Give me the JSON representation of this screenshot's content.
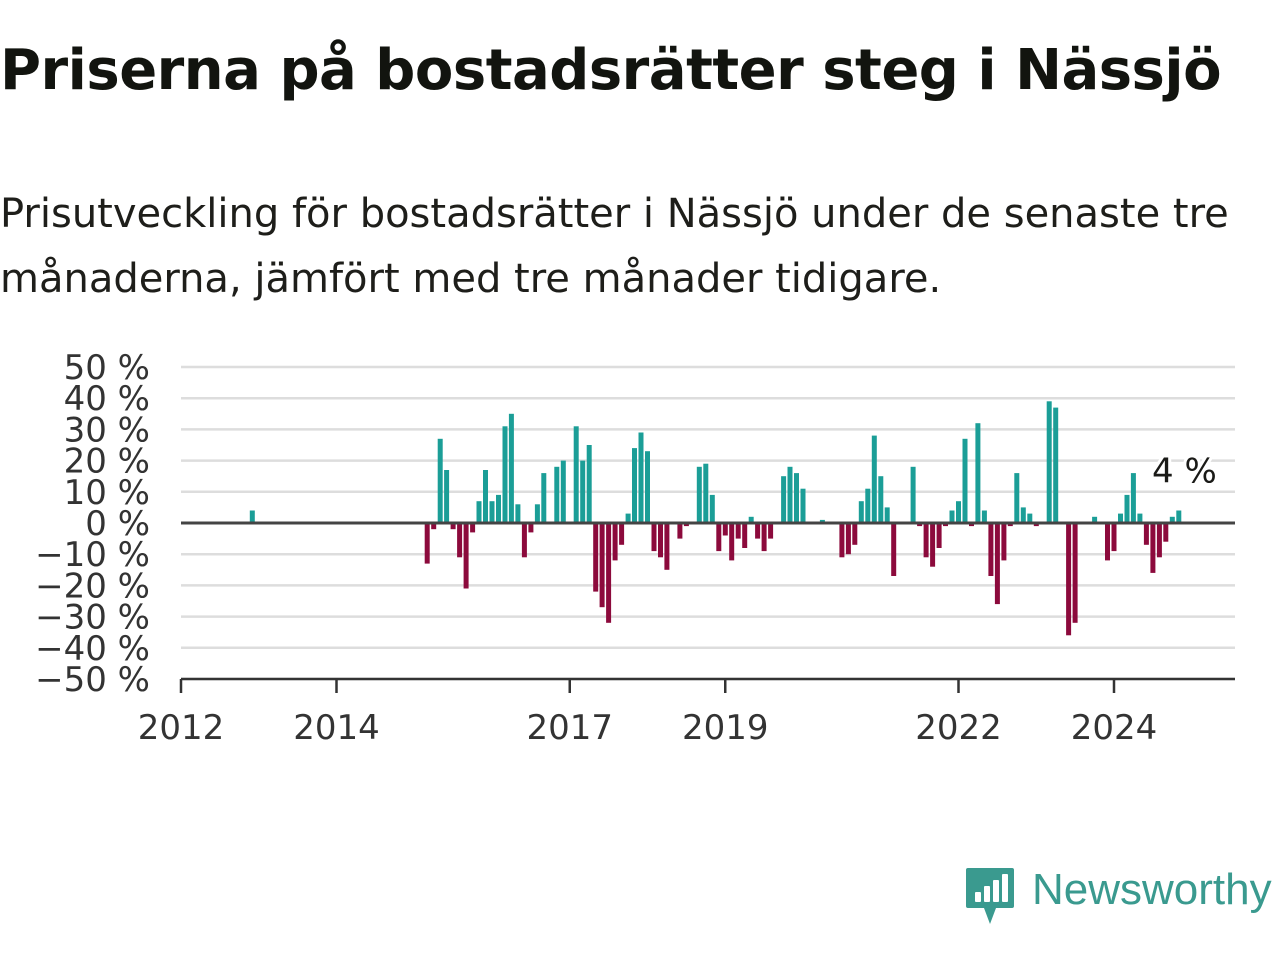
{
  "title": "Priserna på bostadsrätter steg i Nässjö",
  "subtitle": "Prisutveckling för bostadsrätter i Nässjö under de senaste tre månaderna, jämfört med tre månader tidigare.",
  "brand": {
    "name": "Newsworthy",
    "color": "#3a9a8f",
    "icon": "newsworthy-logo-icon"
  },
  "colors": {
    "positive": "#1b9e97",
    "negative": "#8c0a3c",
    "grid": "#dddddd",
    "zero_line": "#444444"
  },
  "chart_data": {
    "type": "bar",
    "x_unit": "month",
    "ylim": [
      -50,
      50
    ],
    "y_ticks": [
      50,
      40,
      30,
      20,
      10,
      0,
      -10,
      -20,
      -30,
      -40,
      -50
    ],
    "y_tick_labels": [
      "50 %",
      "40 %",
      "30 %",
      "20 %",
      "10 %",
      "0 %",
      "−10 %",
      "−20 %",
      "−30 %",
      "−40 %",
      "−50 %"
    ],
    "x_ticks": [
      "2012",
      "2014",
      "2017",
      "2019",
      "2022",
      "2024"
    ],
    "grid": true,
    "last_value_label": "4 %",
    "bars": [
      {
        "x": "2012-12",
        "y": 4
      },
      {
        "x": "2015-03",
        "y": -13
      },
      {
        "x": "2015-04",
        "y": -2
      },
      {
        "x": "2015-05",
        "y": 27
      },
      {
        "x": "2015-06",
        "y": 17
      },
      {
        "x": "2015-07",
        "y": -2
      },
      {
        "x": "2015-08",
        "y": -11
      },
      {
        "x": "2015-09",
        "y": -21
      },
      {
        "x": "2015-10",
        "y": -3
      },
      {
        "x": "2015-11",
        "y": 7
      },
      {
        "x": "2015-12",
        "y": 17
      },
      {
        "x": "2016-01",
        "y": 7
      },
      {
        "x": "2016-02",
        "y": 9
      },
      {
        "x": "2016-03",
        "y": 31
      },
      {
        "x": "2016-04",
        "y": 35
      },
      {
        "x": "2016-05",
        "y": 6
      },
      {
        "x": "2016-06",
        "y": -11
      },
      {
        "x": "2016-07",
        "y": -3
      },
      {
        "x": "2016-08",
        "y": 6
      },
      {
        "x": "2016-09",
        "y": 16
      },
      {
        "x": "2016-11",
        "y": 18
      },
      {
        "x": "2016-12",
        "y": 20
      },
      {
        "x": "2017-02",
        "y": 31
      },
      {
        "x": "2017-03",
        "y": 20
      },
      {
        "x": "2017-04",
        "y": 25
      },
      {
        "x": "2017-05",
        "y": -22
      },
      {
        "x": "2017-06",
        "y": -27
      },
      {
        "x": "2017-07",
        "y": -32
      },
      {
        "x": "2017-08",
        "y": -12
      },
      {
        "x": "2017-09",
        "y": -7
      },
      {
        "x": "2017-10",
        "y": 3
      },
      {
        "x": "2017-11",
        "y": 24
      },
      {
        "x": "2017-12",
        "y": 29
      },
      {
        "x": "2018-01",
        "y": 23
      },
      {
        "x": "2018-02",
        "y": -9
      },
      {
        "x": "2018-03",
        "y": -11
      },
      {
        "x": "2018-04",
        "y": -15
      },
      {
        "x": "2018-06",
        "y": -5
      },
      {
        "x": "2018-07",
        "y": -1
      },
      {
        "x": "2018-09",
        "y": 18
      },
      {
        "x": "2018-10",
        "y": 19
      },
      {
        "x": "2018-11",
        "y": 9
      },
      {
        "x": "2018-12",
        "y": -9
      },
      {
        "x": "2019-01",
        "y": -4
      },
      {
        "x": "2019-02",
        "y": -12
      },
      {
        "x": "2019-03",
        "y": -5
      },
      {
        "x": "2019-04",
        "y": -8
      },
      {
        "x": "2019-05",
        "y": 2
      },
      {
        "x": "2019-06",
        "y": -5
      },
      {
        "x": "2019-07",
        "y": -9
      },
      {
        "x": "2019-08",
        "y": -5
      },
      {
        "x": "2019-10",
        "y": 15
      },
      {
        "x": "2019-11",
        "y": 18
      },
      {
        "x": "2019-12",
        "y": 16
      },
      {
        "x": "2020-01",
        "y": 11
      },
      {
        "x": "2020-04",
        "y": 1
      },
      {
        "x": "2020-07",
        "y": -11
      },
      {
        "x": "2020-08",
        "y": -10
      },
      {
        "x": "2020-09",
        "y": -7
      },
      {
        "x": "2020-10",
        "y": 7
      },
      {
        "x": "2020-11",
        "y": 11
      },
      {
        "x": "2020-12",
        "y": 28
      },
      {
        "x": "2021-01",
        "y": 15
      },
      {
        "x": "2021-02",
        "y": 5
      },
      {
        "x": "2021-03",
        "y": -17
      },
      {
        "x": "2021-06",
        "y": 18
      },
      {
        "x": "2021-07",
        "y": -1
      },
      {
        "x": "2021-08",
        "y": -11
      },
      {
        "x": "2021-09",
        "y": -14
      },
      {
        "x": "2021-10",
        "y": -8
      },
      {
        "x": "2021-11",
        "y": -1
      },
      {
        "x": "2021-12",
        "y": 4
      },
      {
        "x": "2022-01",
        "y": 7
      },
      {
        "x": "2022-02",
        "y": 27
      },
      {
        "x": "2022-03",
        "y": -1
      },
      {
        "x": "2022-04",
        "y": 32
      },
      {
        "x": "2022-05",
        "y": 4
      },
      {
        "x": "2022-06",
        "y": -17
      },
      {
        "x": "2022-07",
        "y": -26
      },
      {
        "x": "2022-08",
        "y": -12
      },
      {
        "x": "2022-09",
        "y": -1
      },
      {
        "x": "2022-10",
        "y": 16
      },
      {
        "x": "2022-11",
        "y": 5
      },
      {
        "x": "2022-12",
        "y": 3
      },
      {
        "x": "2023-01",
        "y": -1
      },
      {
        "x": "2023-03",
        "y": 39
      },
      {
        "x": "2023-04",
        "y": 37
      },
      {
        "x": "2023-06",
        "y": -36
      },
      {
        "x": "2023-07",
        "y": -32
      },
      {
        "x": "2023-10",
        "y": 2
      },
      {
        "x": "2023-12",
        "y": -12
      },
      {
        "x": "2024-01",
        "y": -9
      },
      {
        "x": "2024-02",
        "y": 3
      },
      {
        "x": "2024-03",
        "y": 9
      },
      {
        "x": "2024-04",
        "y": 16
      },
      {
        "x": "2024-05",
        "y": 3
      },
      {
        "x": "2024-06",
        "y": -7
      },
      {
        "x": "2024-07",
        "y": -16
      },
      {
        "x": "2024-08",
        "y": -11
      },
      {
        "x": "2024-09",
        "y": -6
      },
      {
        "x": "2024-10",
        "y": 2
      },
      {
        "x": "2024-11",
        "y": 4
      }
    ]
  }
}
